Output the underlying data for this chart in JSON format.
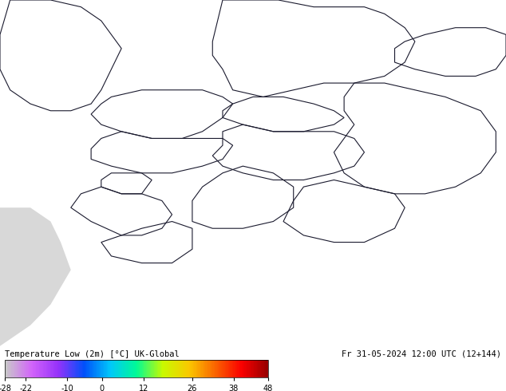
{
  "title_left": "Temperature Low (2m) [°C] UK-Global",
  "title_right": "Fr 31-05-2024 12:00 UTC (12+144)",
  "colorbar_values": [
    -28,
    -22,
    -10,
    0,
    12,
    26,
    38,
    48
  ],
  "colorbar_colors": [
    "#c8c8c8",
    "#d264fa",
    "#9632fa",
    "#0050fa",
    "#00c8fa",
    "#00fa96",
    "#c8fa00",
    "#fac800",
    "#fa6400",
    "#fa0000",
    "#960000"
  ],
  "map_bg_color": "#aaffaa",
  "land_color": "#aaffaa",
  "sea_color": "#d8d8d8",
  "border_color": "#1a1a2e",
  "fig_width": 6.34,
  "fig_height": 4.9,
  "dpi": 100,
  "bottom_bar_height": 0.1
}
